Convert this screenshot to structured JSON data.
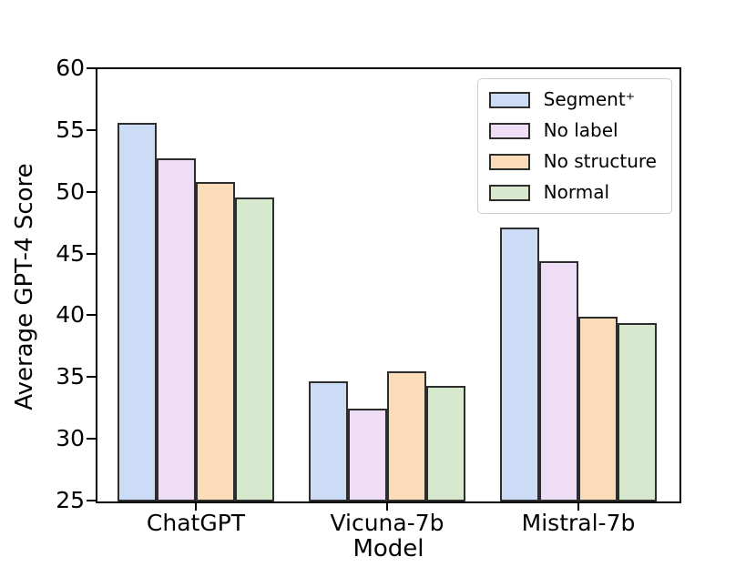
{
  "chart_data": {
    "type": "bar",
    "title": "",
    "xlabel": "Model",
    "ylabel": "Average GPT-4 Score",
    "categories": [
      "ChatGPT",
      "Vicuna-7b",
      "Mistral-7b"
    ],
    "series": [
      {
        "name": "Segment⁺",
        "color": "#ccdcf6",
        "values": [
          55.5,
          34.6,
          47.0
        ]
      },
      {
        "name": "No label",
        "color": "#eeddf5",
        "values": [
          52.6,
          32.4,
          44.3
        ]
      },
      {
        "name": "No structure",
        "color": "#fadcb9",
        "values": [
          50.7,
          35.4,
          39.8
        ]
      },
      {
        "name": "Normal",
        "color": "#d6e9cf",
        "values": [
          49.5,
          34.2,
          39.3
        ]
      }
    ],
    "ylim": [
      25,
      60
    ],
    "yticks": [
      25,
      30,
      35,
      40,
      45,
      50,
      55,
      60
    ],
    "grid": false,
    "legend_position": "upper right",
    "bar_edge_color": "#2d2d2d",
    "axis_color": "#000000"
  }
}
